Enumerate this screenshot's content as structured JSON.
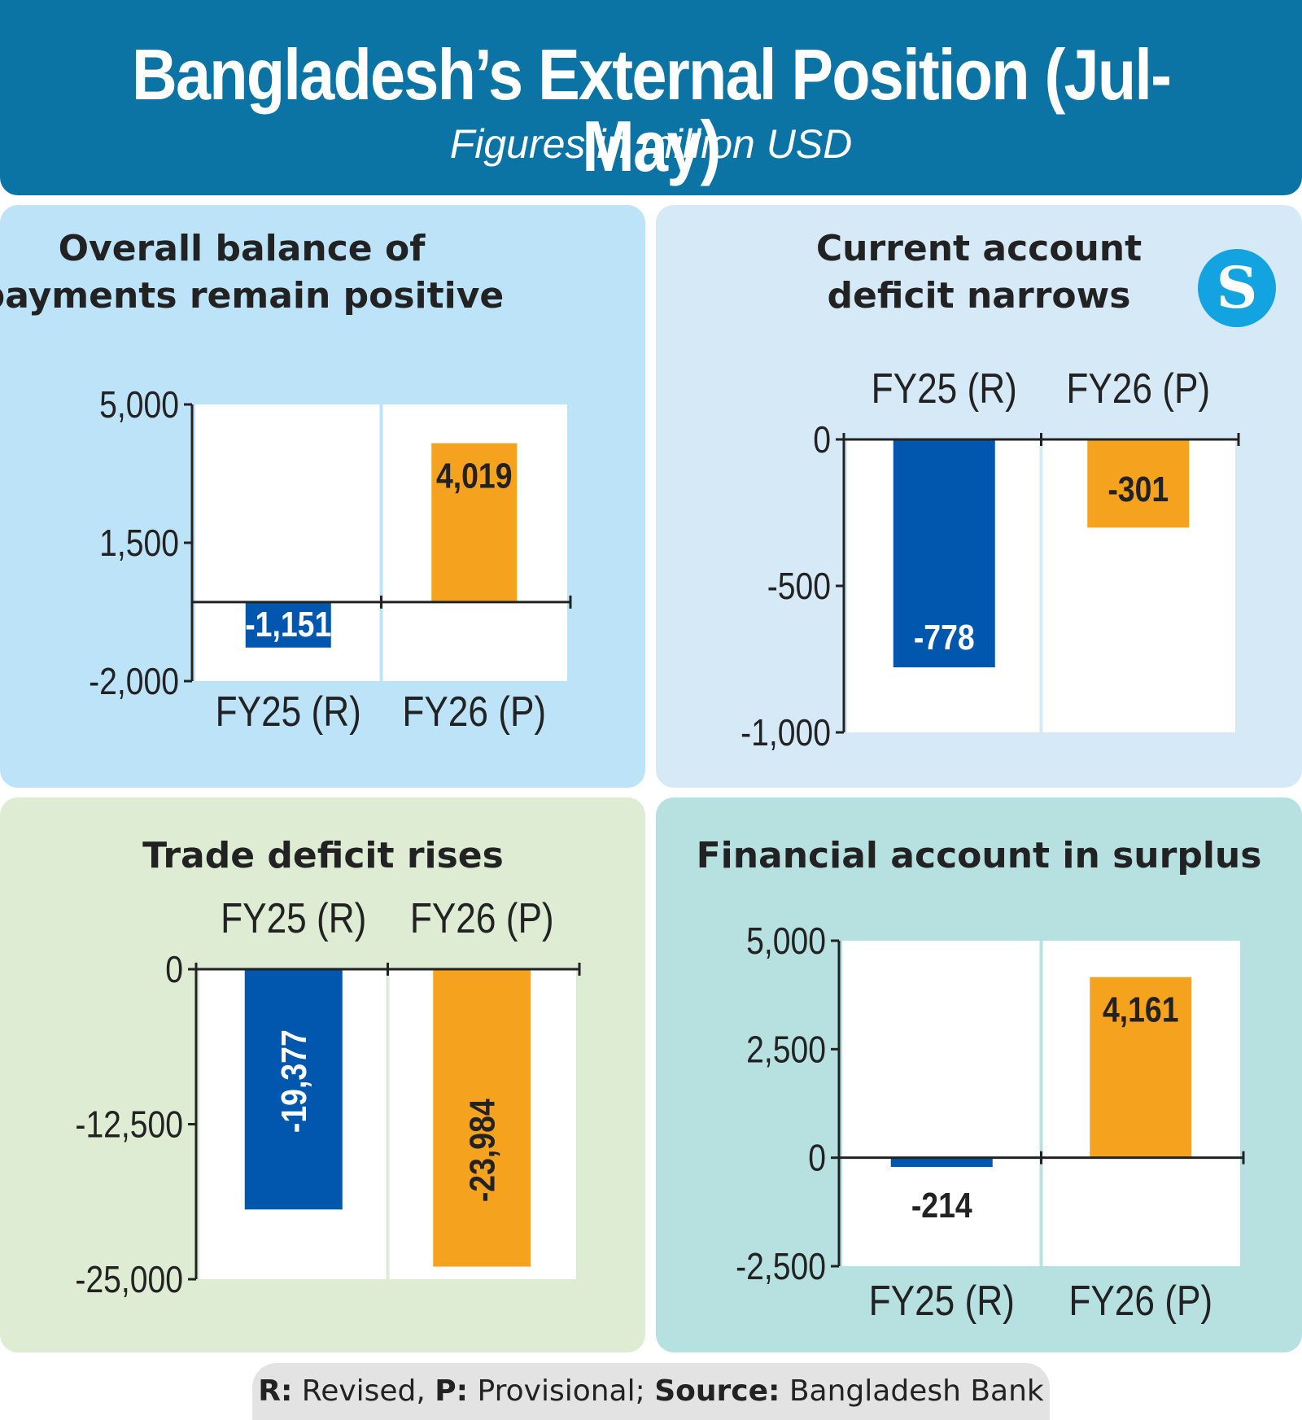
{
  "header": {
    "title": "Bangladesh’s External Position (Jul-May)",
    "subtitle": "Figures in million USD"
  },
  "logo": {
    "letter": "S",
    "icon": "star-logo-icon"
  },
  "footer": {
    "r_key": "R:",
    "r_text": " Revised, ",
    "p_key": "P:",
    "p_text": " Provisional; ",
    "source_key": "Source:",
    "source_text": " Bangladesh Bank"
  },
  "colors": {
    "blue": "#0057ad",
    "orange": "#f5a21f",
    "header": "#0b74a4"
  },
  "chart_data": [
    {
      "type": "bar",
      "title": "Overall balance of payments remain positive",
      "categories": [
        "FY25 (R)",
        "FY26 (P)"
      ],
      "values": [
        -1151,
        4019
      ],
      "labels": [
        "-1,151",
        "4,019"
      ],
      "ylim": [
        -2000,
        5000
      ],
      "yticks": [
        5000,
        1500,
        -2000
      ],
      "ytick_labels": [
        "5,000",
        "1,500",
        "-2,000"
      ],
      "category_position": "bottom"
    },
    {
      "type": "bar",
      "title": "Current account deficit narrows",
      "categories": [
        "FY25 (R)",
        "FY26 (P)"
      ],
      "values": [
        -778,
        -301
      ],
      "labels": [
        "-778",
        "-301"
      ],
      "ylim": [
        -1000,
        0
      ],
      "yticks": [
        0,
        -500,
        -1000
      ],
      "ytick_labels": [
        "0",
        "-500",
        "-1,000"
      ],
      "category_position": "top"
    },
    {
      "type": "bar",
      "title": "Trade deficit rises",
      "categories": [
        "FY25 (R)",
        "FY26 (P)"
      ],
      "values": [
        -19377,
        -23984
      ],
      "labels": [
        "-19,377",
        "-23,984"
      ],
      "ylim": [
        -25000,
        0
      ],
      "yticks": [
        0,
        -12500,
        -25000
      ],
      "ytick_labels": [
        "0",
        "-12,500",
        "-25,000"
      ],
      "category_position": "top"
    },
    {
      "type": "bar",
      "title": "Financial account in surplus",
      "categories": [
        "FY25 (R)",
        "FY26 (P)"
      ],
      "values": [
        -214,
        4161
      ],
      "labels": [
        "-214",
        "4,161"
      ],
      "ylim": [
        -2500,
        5000
      ],
      "yticks": [
        5000,
        2500,
        0,
        -2500
      ],
      "ytick_labels": [
        "5,000",
        "2,500",
        "0",
        "-2,500"
      ],
      "category_position": "bottom"
    }
  ]
}
